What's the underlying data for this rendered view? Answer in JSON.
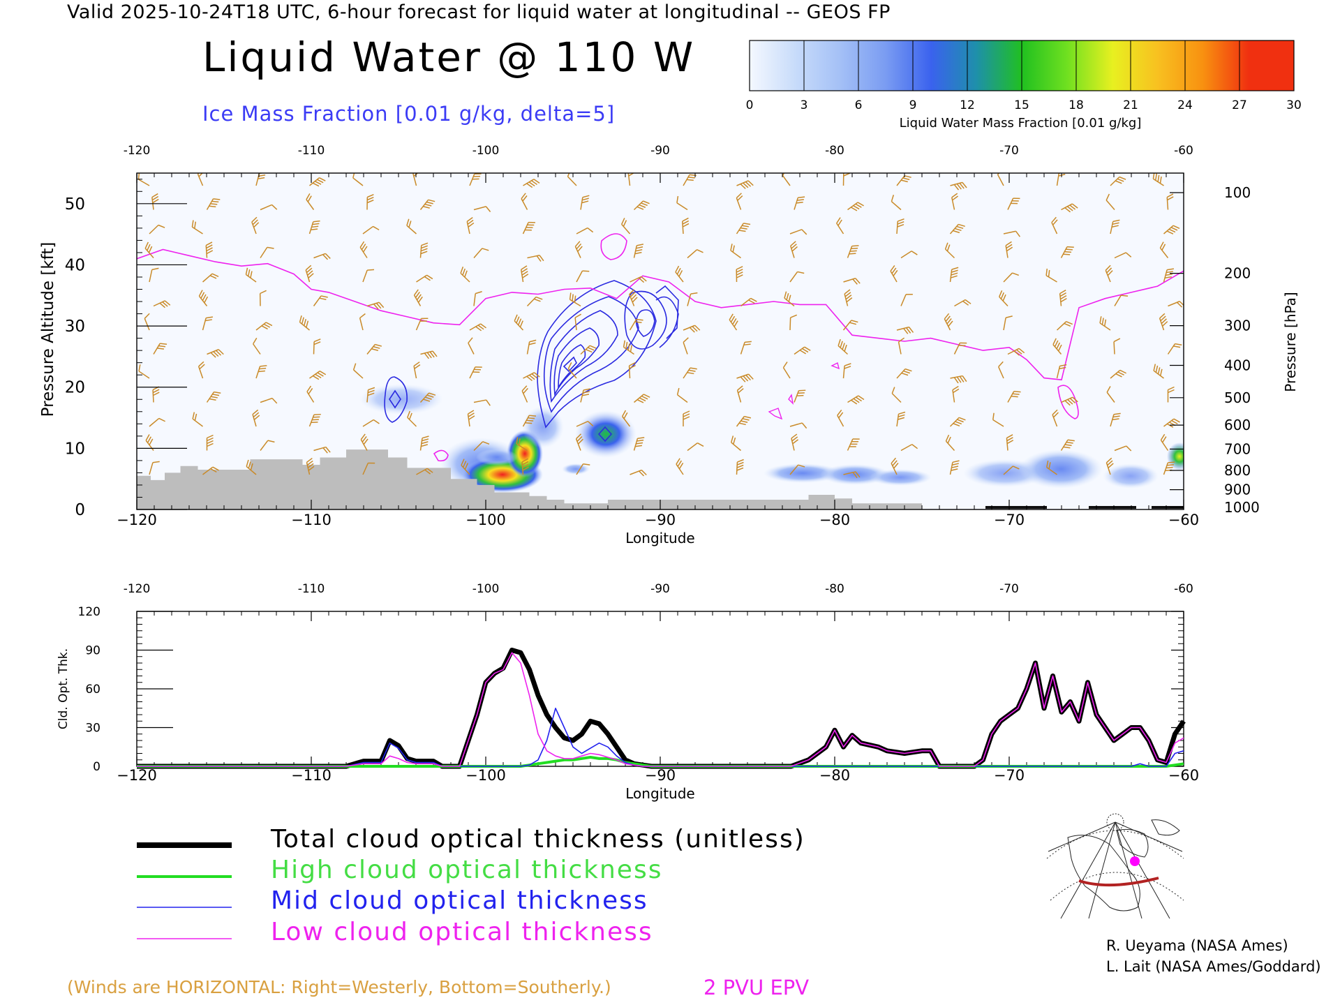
{
  "header": {
    "valid_line": "Valid 2025-10-24T18 UTC, 6-hour forecast for liquid water at longitudinal -- GEOS FP",
    "title": "Liquid Water @ 110 W",
    "ice_label": "Ice Mass Fraction [0.01 g/kg, delta=5]"
  },
  "colorbar": {
    "ticks": [
      "0",
      "3",
      "6",
      "9",
      "12",
      "15",
      "18",
      "21",
      "24",
      "27",
      "30"
    ],
    "label": "Liquid Water Mass Fraction [0.01 g/kg]",
    "colors": [
      "#f4f8ff",
      "#c8dcfa",
      "#a4c0f6",
      "#7a9cf2",
      "#3a62ee",
      "#1e90aa",
      "#20c020",
      "#70e020",
      "#e8f020",
      "#f8c020",
      "#f89010",
      "#f03010"
    ]
  },
  "chart_data": [
    {
      "type": "heatmap",
      "description_kind": "longitude-pressure cross section",
      "xlabel": "Longitude",
      "ylabel": "Pressure Altitude [kft]",
      "right_label": "Pressure [hPa]",
      "xlim": [
        -120,
        -60
      ],
      "ylim": [
        0,
        55
      ],
      "x_ticks": [
        "−120",
        "−110",
        "−100",
        "−90",
        "−80",
        "−70",
        "−60"
      ],
      "top_ticks": [
        "-120",
        "-110",
        "-100",
        "-90",
        "-80",
        "-70",
        "-60"
      ],
      "y_ticks": [
        "0",
        "10",
        "20",
        "30",
        "40",
        "50"
      ],
      "pressure_ticks": [
        "100",
        "200",
        "300",
        "400",
        "500",
        "600",
        "700",
        "800",
        "900",
        "1000"
      ],
      "liquid_water_max_region": {
        "lon": [
          -100,
          -96
        ],
        "kft": [
          2,
          11
        ],
        "peak_value": 30
      },
      "ice_contour_max": {
        "lon": -96,
        "kft": 23
      },
      "epv_2pvu_line": {
        "lon": [
          -120,
          -118.5,
          -117,
          -115.5,
          -114,
          -112.5,
          -111,
          -110,
          -109,
          -107.5,
          -106,
          -104.5,
          -103,
          -101.5,
          -100,
          -98.5,
          -97,
          -95.5,
          -94,
          -92.5,
          -91,
          -89.5,
          -88,
          -86.5,
          -85,
          -83.5,
          -82,
          -80.5,
          -79,
          -77.5,
          -76,
          -74.5,
          -73,
          -71.5,
          -70,
          -69,
          -68,
          -67,
          -66,
          -64.5,
          -63,
          -61.5,
          -60
        ],
        "kft": [
          41,
          42.5,
          41.5,
          40.5,
          39.8,
          40.2,
          38.5,
          36,
          35.5,
          34,
          32.5,
          31.5,
          30.5,
          30.2,
          34.5,
          35.5,
          35.2,
          36,
          36.2,
          34.5,
          38.2,
          37.2,
          34,
          33,
          33.5,
          34,
          33.5,
          33.5,
          28.5,
          28,
          27.5,
          28,
          27,
          26,
          26.5,
          24.5,
          21.5,
          21.2,
          33,
          34.5,
          35.5,
          36.5,
          39
        ]
      },
      "terrain_kft": {
        "lon": [
          -120,
          -119.2,
          -119.2,
          -118.4,
          -118.4,
          -117.5,
          -117.5,
          -116.5,
          -116.5,
          -113.5,
          -113.5,
          -110.5,
          -110.5,
          -109.5,
          -109.5,
          -108,
          -108,
          -105.6,
          -105.6,
          -104.5,
          -104.5,
          -102,
          -102,
          -100.5,
          -100.5,
          -99.5,
          -99.5,
          -97.5,
          -97.5,
          -96.5,
          -96.5,
          -95.5,
          -95.5,
          -93,
          -93,
          -81.5,
          -81.5,
          -80,
          -80,
          -79,
          -79,
          -75,
          -75,
          -60
        ],
        "kft": [
          5.5,
          5.5,
          4.8,
          4.8,
          6.0,
          6.0,
          7.1,
          7.1,
          6.5,
          6.5,
          8.2,
          8.2,
          7.3,
          7.3,
          8.5,
          8.5,
          9.8,
          9.8,
          8.5,
          8.5,
          6.8,
          6.8,
          5.0,
          5.0,
          4.0,
          4.0,
          2.8,
          2.8,
          2.2,
          2.2,
          1.6,
          1.6,
          1.0,
          1.0,
          1.6,
          1.6,
          2.4,
          2.4,
          1.8,
          1.8,
          1.0,
          1.0,
          0,
          0
        ]
      }
    },
    {
      "type": "line",
      "xlabel": "Longitude",
      "ylabel": "Cld. Opt. Thk.",
      "xlim": [
        -120,
        -60
      ],
      "ylim": [
        0,
        120
      ],
      "x_ticks": [
        "−120",
        "−110",
        "−100",
        "−90",
        "−80",
        "−70",
        "−60"
      ],
      "top_ticks": [
        "-120",
        "-110",
        "-100",
        "-90",
        "-80",
        "-70",
        "-60"
      ],
      "y_ticks": [
        "0",
        "30",
        "60",
        "90",
        "120"
      ],
      "x": [
        -120,
        -108,
        -107,
        -106,
        -105.5,
        -105,
        -104.5,
        -104,
        -103.5,
        -103,
        -102.5,
        -101.5,
        -101,
        -100.5,
        -100,
        -99.5,
        -99,
        -98.5,
        -98,
        -97.5,
        -97,
        -96.5,
        -96,
        -95.5,
        -95,
        -94.5,
        -94,
        -93.5,
        -93,
        -92.5,
        -92,
        -91.5,
        -91,
        -90.5,
        -90,
        -82.5,
        -81.5,
        -80.5,
        -80,
        -79.5,
        -79,
        -78.5,
        -77.5,
        -77,
        -76,
        -75,
        -74.5,
        -74,
        -73,
        -72,
        -71.5,
        -71,
        -70.5,
        -70,
        -69.5,
        -69,
        -68.5,
        -68,
        -67.5,
        -67,
        -66.5,
        -66,
        -65.5,
        -65,
        -64.5,
        -64,
        -63.5,
        -63,
        -62.5,
        -62,
        -61.5,
        -61,
        -60.5,
        -60
      ],
      "series": [
        {
          "name": "Total cloud optical thickness (unitless)",
          "values": [
            0,
            0,
            4,
            4,
            20,
            16,
            6,
            4,
            4,
            4,
            0,
            0,
            20,
            40,
            65,
            72,
            76,
            90,
            88,
            75,
            55,
            40,
            30,
            22,
            20,
            25,
            35,
            33,
            25,
            15,
            5,
            2,
            1,
            0,
            0,
            0,
            5,
            15,
            28,
            15,
            24,
            18,
            15,
            12,
            10,
            12,
            12,
            0,
            0,
            0,
            5,
            25,
            35,
            40,
            45,
            60,
            80,
            45,
            70,
            42,
            50,
            35,
            65,
            40,
            30,
            20,
            25,
            30,
            30,
            20,
            5,
            3,
            25,
            35
          ]
        },
        {
          "name": "High cloud optical thickness",
          "values": [
            0,
            0,
            0,
            0,
            0,
            0,
            0,
            0,
            0,
            0,
            0,
            0,
            0,
            0,
            0,
            0,
            0,
            0,
            0,
            1,
            2,
            3,
            4,
            5,
            5,
            6,
            7,
            6,
            6,
            5,
            3,
            2,
            1,
            0,
            0,
            0,
            0,
            0,
            0,
            0,
            0,
            0,
            0,
            0,
            0,
            0,
            0,
            0,
            0,
            0,
            0,
            0,
            0,
            0,
            0,
            0,
            0,
            0,
            0,
            0,
            0,
            0,
            0,
            0,
            0,
            0,
            0,
            0,
            0,
            0,
            0,
            0,
            1,
            2
          ]
        },
        {
          "name": "Mid cloud optical thickness",
          "values": [
            0,
            0,
            3,
            3,
            18,
            14,
            5,
            3,
            3,
            3,
            0,
            0,
            0,
            0,
            0,
            0,
            0,
            0,
            0,
            1,
            5,
            20,
            45,
            30,
            15,
            10,
            14,
            18,
            15,
            8,
            3,
            1,
            0,
            0,
            0,
            0,
            0,
            0,
            0,
            0,
            0,
            0,
            0,
            0,
            0,
            0,
            0,
            0,
            0,
            0,
            0,
            0,
            0,
            0,
            0,
            0,
            0,
            0,
            0,
            0,
            0,
            0,
            0,
            0,
            0,
            0,
            0,
            0,
            2,
            0,
            0,
            0,
            10,
            12
          ]
        },
        {
          "name": "Low cloud optical thickness",
          "values": [
            0,
            0,
            2,
            2,
            8,
            6,
            3,
            2,
            2,
            2,
            0,
            0,
            20,
            40,
            65,
            72,
            75,
            88,
            80,
            55,
            25,
            12,
            8,
            6,
            6,
            8,
            10,
            9,
            7,
            5,
            2,
            1,
            0,
            0,
            0,
            0,
            5,
            15,
            28,
            15,
            24,
            18,
            15,
            12,
            10,
            12,
            12,
            0,
            0,
            0,
            5,
            25,
            35,
            40,
            45,
            60,
            80,
            45,
            70,
            42,
            50,
            35,
            65,
            40,
            30,
            20,
            25,
            30,
            30,
            20,
            5,
            3,
            18,
            22
          ]
        }
      ],
      "colors": [
        "#000000",
        "#22dd22",
        "#2222ee",
        "#ee22ee"
      ]
    }
  ],
  "legend": {
    "total": "Total cloud optical thickness (unitless)",
    "high": "High cloud optical thickness",
    "mid": "Mid cloud optical thickness",
    "low": "Low cloud optical thickness"
  },
  "footer": {
    "credit_1": "R. Ueyama (NASA Ames)",
    "credit_2": "L. Lait (NASA Ames/Goddard)",
    "winds_note": "(Winds are HORIZONTAL: Right=Westerly, Bottom=Southerly.)",
    "epv_note": "2 PVU EPV"
  }
}
